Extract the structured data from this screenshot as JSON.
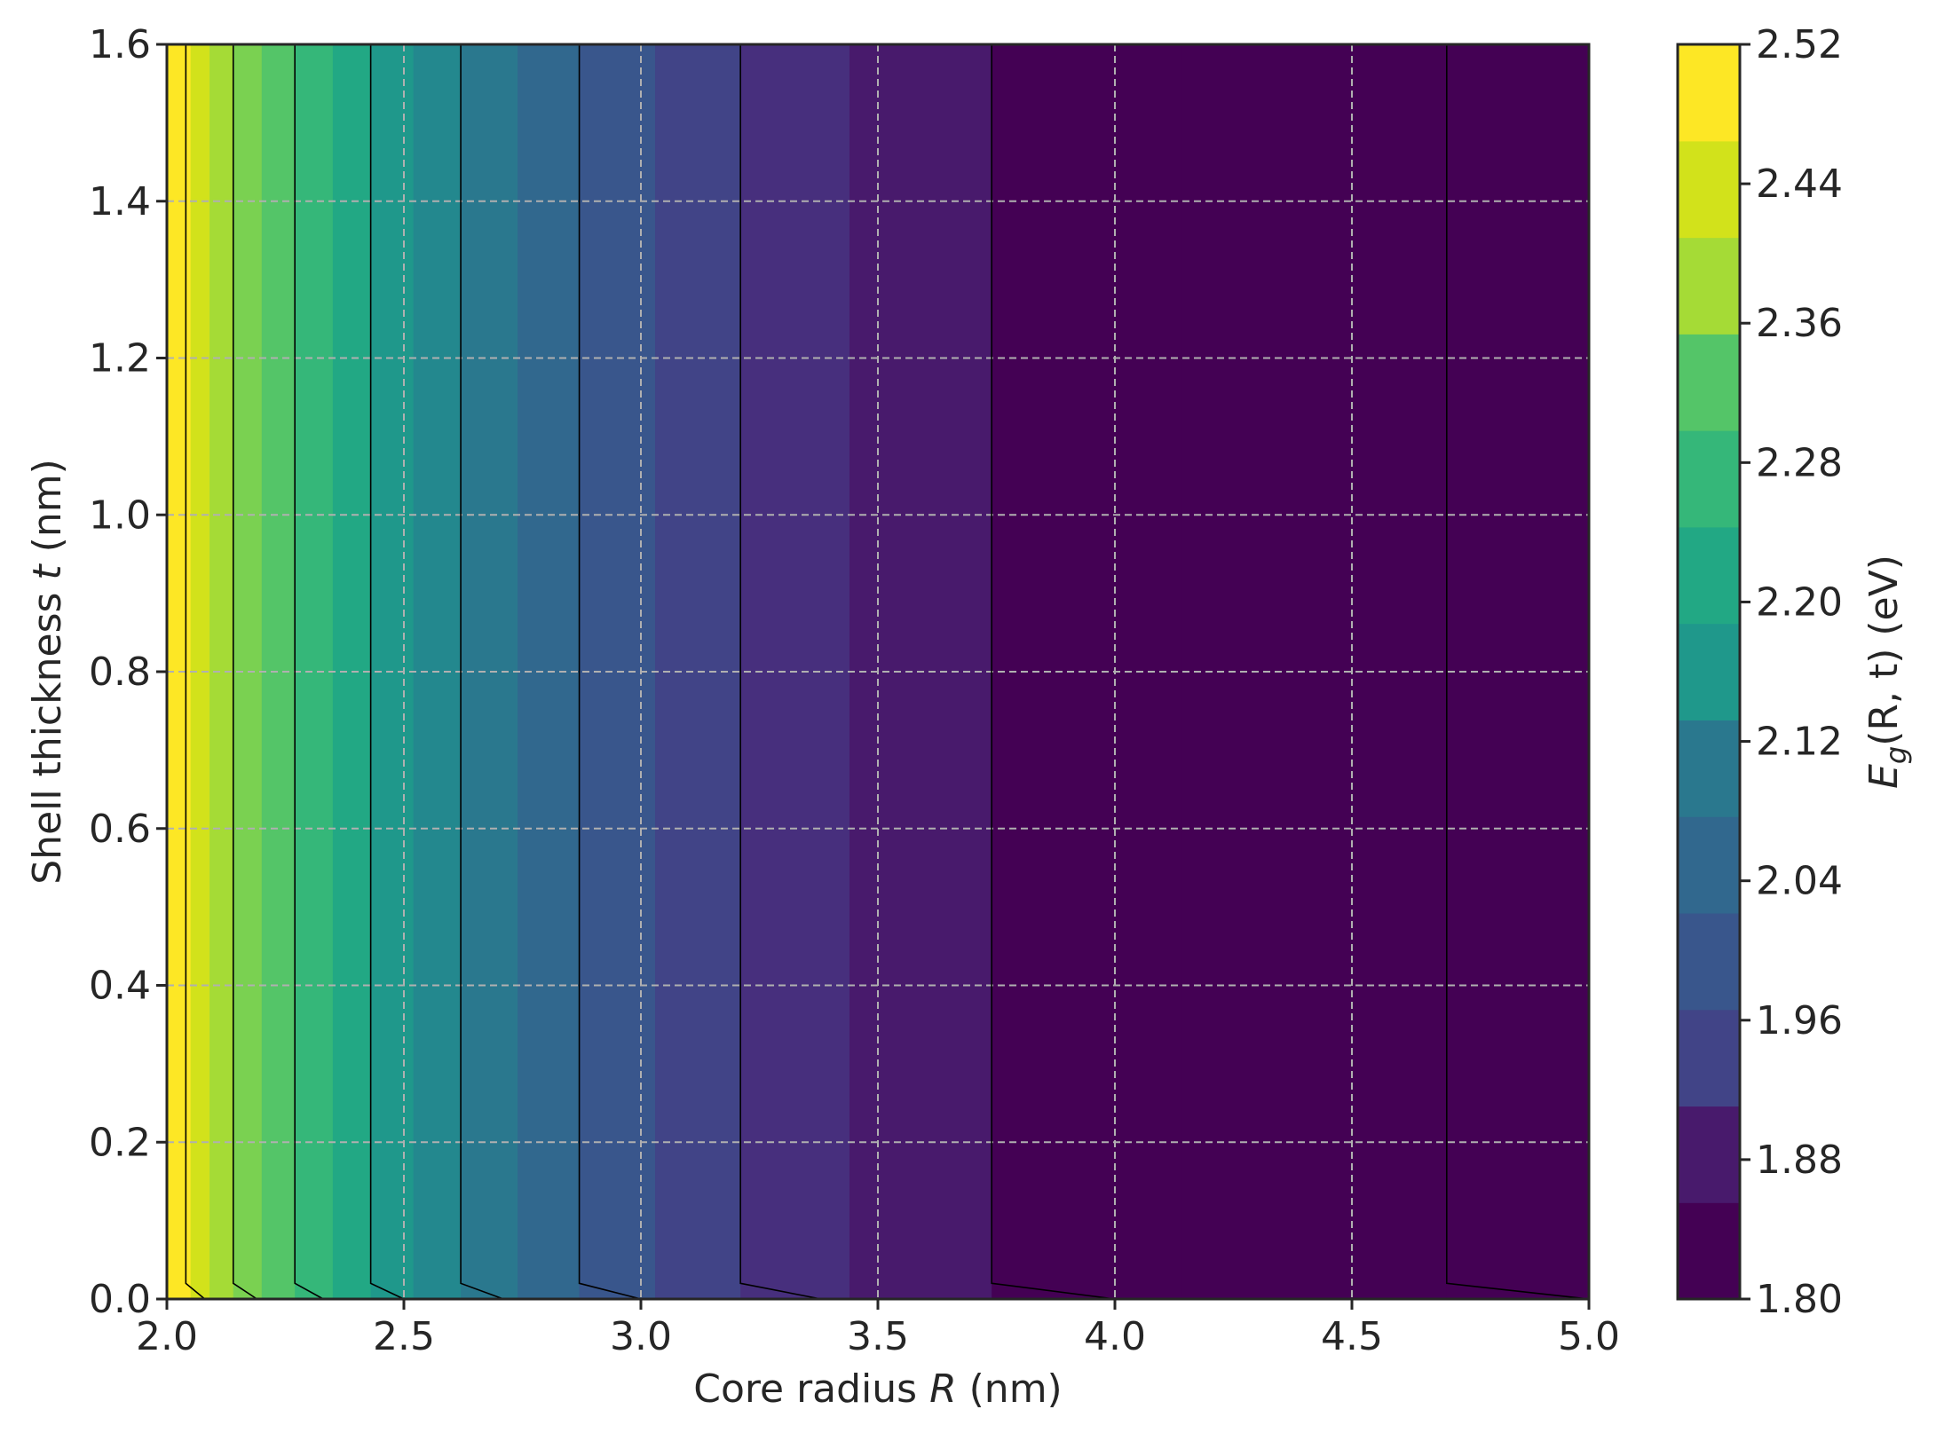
{
  "chart_data": {
    "type": "heatmap",
    "subtype": "filled-contour",
    "xlabel": {
      "prefix": "Core radius ",
      "var": "R",
      "suffix": " (nm)"
    },
    "ylabel": {
      "prefix": "Shell thickness ",
      "var": "t",
      "suffix": " (nm)"
    },
    "colorbar_label": {
      "E": "E",
      "sub": "g",
      "args": "(R, t)",
      "unit": " (eV)"
    },
    "xlim": [
      2.0,
      5.0
    ],
    "ylim": [
      0.0,
      1.6
    ],
    "x_ticks": [
      "2.0",
      "2.5",
      "3.0",
      "3.5",
      "4.0",
      "4.5",
      "5.0"
    ],
    "y_ticks": [
      "0.0",
      "0.2",
      "0.4",
      "0.6",
      "0.8",
      "1.0",
      "1.2",
      "1.4",
      "1.6"
    ],
    "colorbar_ticks": [
      "1.80",
      "1.88",
      "1.96",
      "2.04",
      "2.12",
      "2.20",
      "2.28",
      "2.36",
      "2.44",
      "2.52"
    ],
    "colorbar_range": [
      1.8,
      2.52
    ],
    "grid": true,
    "colormap": "viridis",
    "level_colors": [
      "#440154",
      "#481a6c",
      "#472f7d",
      "#414487",
      "#39568c",
      "#31688e",
      "#2a788e",
      "#23888e",
      "#1f988b",
      "#22a884",
      "#35b779",
      "#54c568",
      "#7ad151",
      "#a5db36",
      "#d2e21b",
      "#fde725"
    ],
    "band_boundaries_R": [
      2.05,
      2.09,
      2.14,
      2.2,
      2.27,
      2.35,
      2.43,
      2.52,
      2.62,
      2.74,
      2.87,
      3.03,
      3.21,
      3.44,
      3.74,
      4.14,
      4.7
    ],
    "contour_lines": [
      {
        "value": 2.44,
        "R_top": 2.04,
        "R_bottom": 2.08
      },
      {
        "value": 2.36,
        "R_top": 2.14,
        "R_bottom": 2.19
      },
      {
        "value": 2.28,
        "R_top": 2.27,
        "R_bottom": 2.33
      },
      {
        "value": 2.2,
        "R_top": 2.43,
        "R_bottom": 2.5
      },
      {
        "value": 2.12,
        "R_top": 2.62,
        "R_bottom": 2.71
      },
      {
        "value": 2.04,
        "R_top": 2.87,
        "R_bottom": 3.0
      },
      {
        "value": 1.96,
        "R_top": 3.21,
        "R_bottom": 3.38
      },
      {
        "value": 1.88,
        "R_top": 3.74,
        "R_bottom": 4.0
      },
      {
        "value": 1.8,
        "R_top": 4.7,
        "R_bottom": 5.0
      }
    ]
  }
}
